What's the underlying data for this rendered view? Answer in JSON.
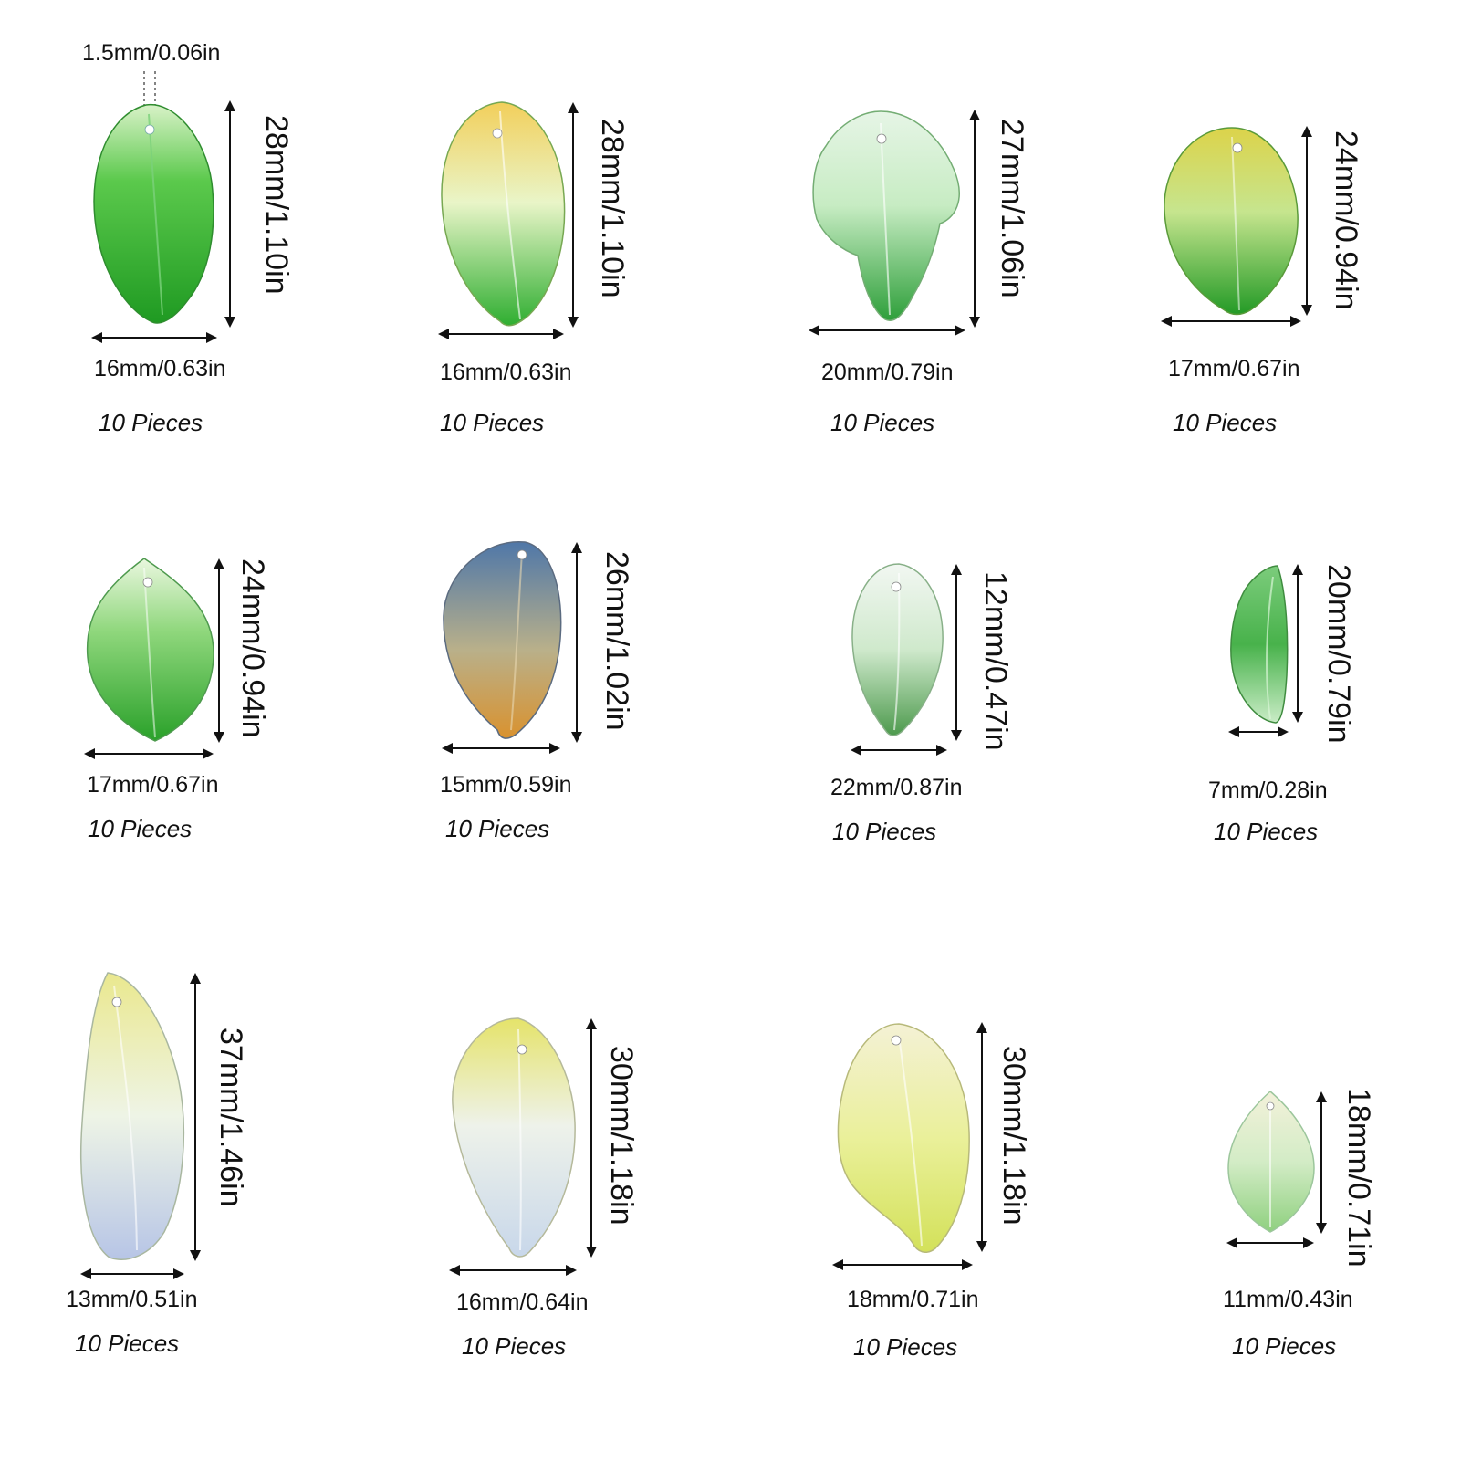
{
  "hole_label": "1.5mm/0.06in",
  "items": [
    {
      "height": "28mm/1.10in",
      "width": "16mm/0.63in",
      "qty": "10 Pieces",
      "colors": [
        "#d9f2c8",
        "#5bc94c",
        "#1f9a22"
      ],
      "leaf-icon": "leaf-icon"
    },
    {
      "height": "28mm/1.10in",
      "width": "16mm/0.63in",
      "qty": "10 Pieces",
      "colors": [
        "#f2cf5a",
        "#e9f5c8",
        "#2fae31"
      ],
      "leaf-icon": "leaf-icon"
    },
    {
      "height": "27mm/1.06in",
      "width": "20mm/0.79in",
      "qty": "10 Pieces",
      "colors": [
        "#e6f5e6",
        "#c7ecc3",
        "#2e9f3a"
      ],
      "leaf-icon": "leaf-icon"
    },
    {
      "height": "24mm/0.94in",
      "width": "17mm/0.67in",
      "qty": "10 Pieces",
      "colors": [
        "#dcd34a",
        "#c6e58e",
        "#239a26"
      ],
      "leaf-icon": "leaf-icon"
    },
    {
      "height": "24mm/0.94in",
      "width": "17mm/0.67in",
      "qty": "10 Pieces",
      "colors": [
        "#eaf7df",
        "#8fd77c",
        "#2aa12a"
      ],
      "leaf-icon": "leaf-icon"
    },
    {
      "height": "26mm/1.02in",
      "width": "15mm/0.59in",
      "qty": "10 Pieces",
      "colors": [
        "#4f77a8",
        "#b9b08a",
        "#d9922f"
      ],
      "leaf-icon": "leaf-icon"
    },
    {
      "height": "12mm/0.47in",
      "width": "22mm/0.87in",
      "qty": "10 Pieces",
      "colors": [
        "#f2f7f2",
        "#cfe9cc",
        "#4d9a4d"
      ],
      "leaf-icon": "leaf-icon"
    },
    {
      "height": "20mm/0.79in",
      "width": "7mm/0.28in",
      "qty": "10 Pieces",
      "colors": [
        "#7ccc7c",
        "#48b24b",
        "#c9ecc6"
      ],
      "leaf-icon": "leaf-icon"
    },
    {
      "height": "37mm/1.46in",
      "width": "13mm/0.51in",
      "qty": "10 Pieces",
      "colors": [
        "#eae88e",
        "#eef4e6",
        "#b7c5e6"
      ],
      "leaf-icon": "leaf-icon"
    },
    {
      "height": "30mm/1.18in",
      "width": "16mm/0.64in",
      "qty": "10 Pieces",
      "colors": [
        "#e5e36a",
        "#eef2ea",
        "#c8d7ea"
      ],
      "leaf-icon": "leaf-icon"
    },
    {
      "height": "30mm/1.18in",
      "width": "18mm/0.71in",
      "qty": "10 Pieces",
      "colors": [
        "#f4f1d5",
        "#eaf09a",
        "#d3e15a"
      ],
      "leaf-icon": "leaf-icon"
    },
    {
      "height": "18mm/0.71in",
      "width": "11mm/0.43in",
      "qty": "10 Pieces",
      "colors": [
        "#f3f1da",
        "#d3ecc6",
        "#8fd07f"
      ],
      "leaf-icon": "leaf-icon"
    }
  ]
}
